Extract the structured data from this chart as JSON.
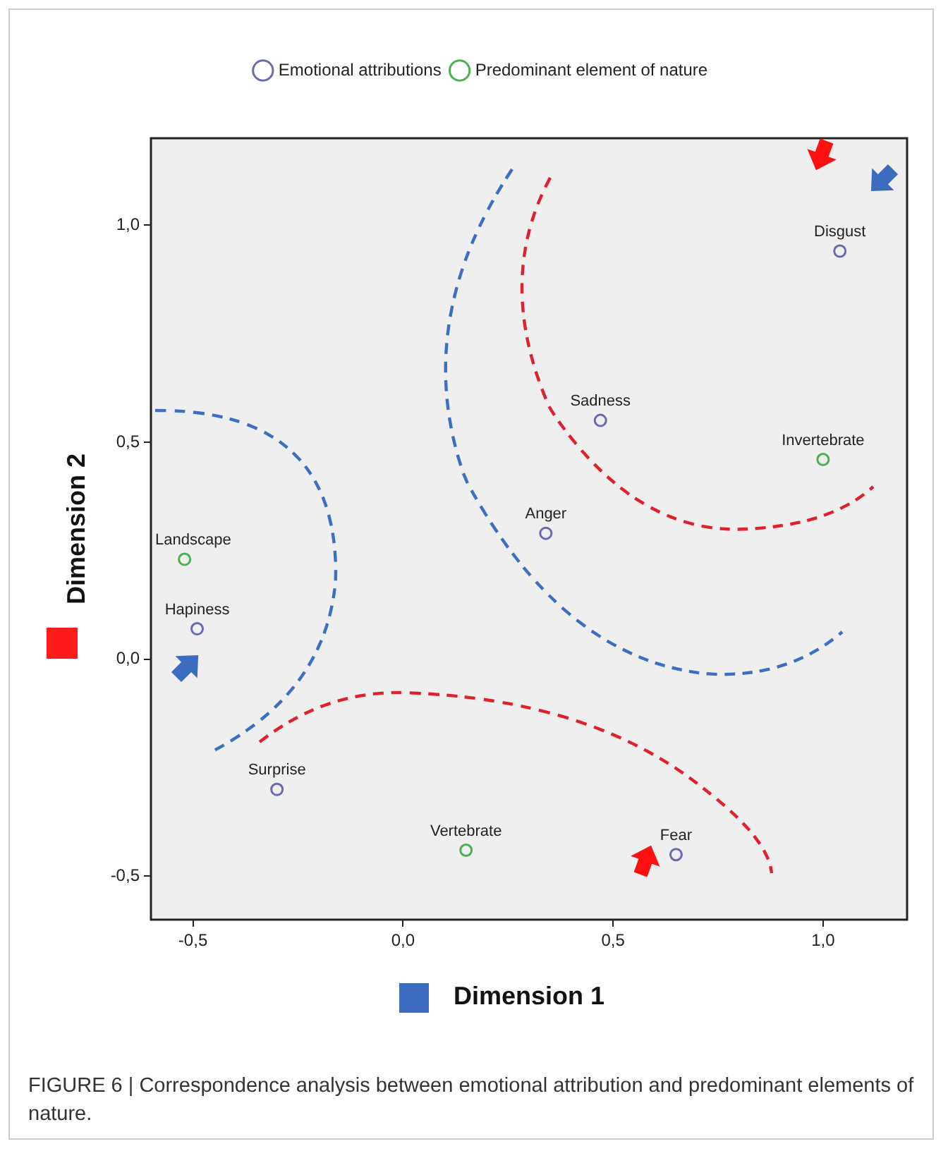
{
  "chart_data": {
    "type": "scatter",
    "xlabel": "Dimension 1",
    "ylabel": "Dimension 2",
    "xlim": [
      -0.6,
      1.2
    ],
    "ylim": [
      -0.6,
      1.2
    ],
    "xticks": [
      {
        "value": -0.5,
        "label": "-0,5"
      },
      {
        "value": 0,
        "label": "0,0"
      },
      {
        "value": 0.5,
        "label": "0,5"
      },
      {
        "value": 1,
        "label": "1,0"
      }
    ],
    "yticks": [
      {
        "value": -0.5,
        "label": "-0,5"
      },
      {
        "value": 0,
        "label": "0,0"
      },
      {
        "value": 0.5,
        "label": "0,5"
      },
      {
        "value": 1,
        "label": "1,0"
      }
    ],
    "grid": false,
    "legend": "top",
    "marker": "circle",
    "series": [
      {
        "name": "Emotional attributions",
        "color": "#6a6ab0",
        "x": [
          1.04,
          0.47,
          0.34,
          -0.49,
          -0.3,
          0.65
        ],
        "values": [
          0.94,
          0.55,
          0.29,
          0.07,
          -0.3,
          -0.45
        ]
      },
      {
        "name": "Predominant element of nature",
        "color": "#4caf50",
        "x": [
          1.0,
          -0.52,
          0.15
        ],
        "values": [
          0.46,
          0.23,
          -0.44
        ]
      }
    ],
    "annotations": [
      {
        "text": "Disgust",
        "x": 1.04,
        "y": 0.94
      },
      {
        "text": "Sadness",
        "x": 0.47,
        "y": 0.55
      },
      {
        "text": "Invertebrate",
        "x": 1.0,
        "y": 0.46
      },
      {
        "text": "Anger",
        "x": 0.34,
        "y": 0.29
      },
      {
        "text": "Landscape",
        "x": -0.52,
        "y": 0.23
      },
      {
        "text": "Hapiness",
        "x": -0.49,
        "y": 0.07
      },
      {
        "text": "Surprise",
        "x": -0.3,
        "y": -0.3
      },
      {
        "text": "Vertebrate",
        "x": 0.15,
        "y": -0.44
      },
      {
        "text": "Fear",
        "x": 0.65,
        "y": -0.45
      },
      "FIGURE 6 | Correspondence analysis between emotional attribution and predominant elements of nature."
    ]
  }
}
